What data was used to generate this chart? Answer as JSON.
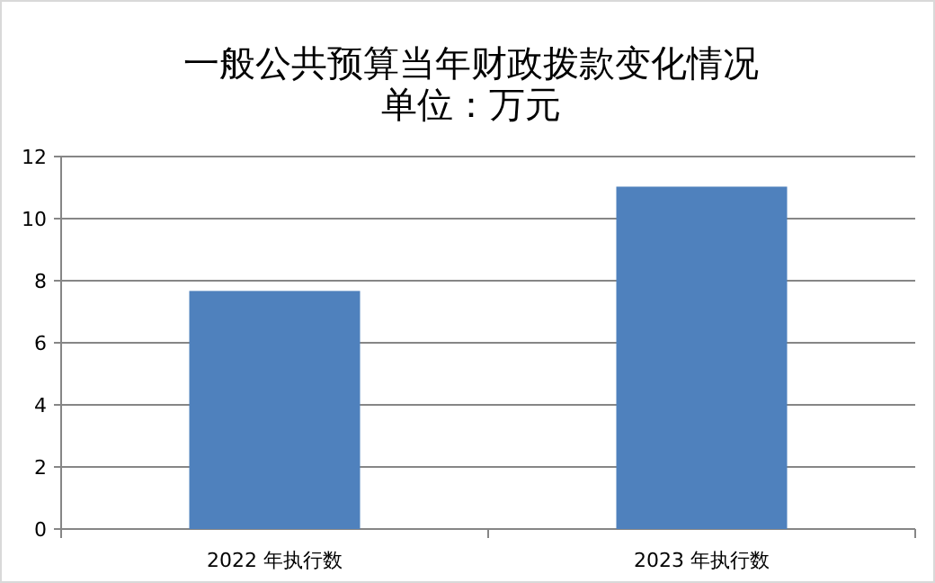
{
  "chart_data": {
    "type": "bar",
    "title": "一般公共预算当年财政拨款变化情况",
    "subtitle": "单位：万元",
    "categories": [
      "2022 年执行数",
      "2023 年执行数"
    ],
    "values": [
      7.67,
      11.03
    ],
    "color": "#4f81bd",
    "ylim": [
      0,
      12
    ],
    "yticks": [
      0,
      2,
      4,
      6,
      8,
      10,
      12
    ],
    "grid": "y"
  }
}
